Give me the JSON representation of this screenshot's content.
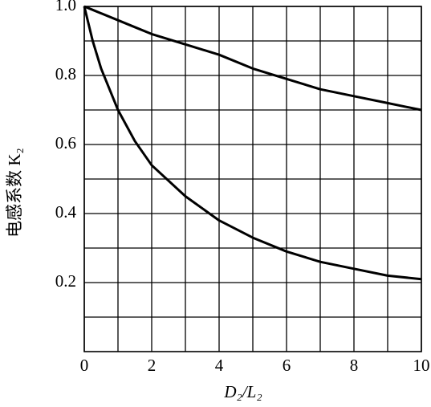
{
  "chart_data": {
    "type": "line",
    "xlabel": "D₂/L₂",
    "ylabel": "电感系数 K₂",
    "x": [
      0,
      0.25,
      0.5,
      1,
      1.5,
      2,
      3,
      4,
      5,
      6,
      7,
      8,
      9,
      10
    ],
    "series": [
      {
        "color": "#000000",
        "values": [
          1.0,
          0.99,
          0.98,
          0.96,
          0.94,
          0.92,
          0.89,
          0.86,
          0.82,
          0.79,
          0.76,
          0.74,
          0.72,
          0.7
        ]
      },
      {
        "color": "#000000",
        "values": [
          1.0,
          0.9,
          0.82,
          0.7,
          0.61,
          0.54,
          0.45,
          0.38,
          0.33,
          0.29,
          0.26,
          0.24,
          0.22,
          0.21
        ]
      }
    ],
    "xlim": [
      0,
      10
    ],
    "xticks": [
      0,
      2,
      4,
      6,
      8,
      10
    ],
    "xminorticks": [
      1,
      3,
      5,
      7,
      9
    ],
    "ylim": [
      0,
      1
    ],
    "yticks": [
      0.2,
      0.4,
      0.6,
      0.8,
      {
        "value": 1,
        "label": "1.0"
      }
    ],
    "yminorticks": [
      0.1,
      0.3,
      0.5,
      0.7,
      0.9
    ],
    "grid": true
  }
}
